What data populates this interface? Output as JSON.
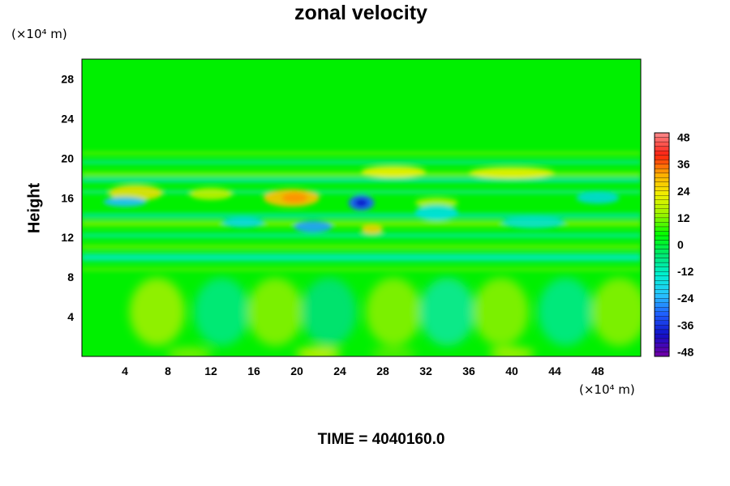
{
  "chart_data": {
    "type": "heatmap",
    "title": "zonal velocity",
    "ylabel": "Height",
    "xlabel": "",
    "x_unit": "(×10⁴ m)",
    "y_unit": "(×10⁴ m)",
    "x_ticks": [
      4,
      8,
      12,
      16,
      20,
      24,
      28,
      32,
      36,
      40,
      44,
      48
    ],
    "y_ticks": [
      4,
      8,
      12,
      16,
      20,
      24,
      28
    ],
    "xlim": [
      0,
      52
    ],
    "ylim": [
      0,
      30
    ],
    "colorbar": {
      "ticks": [
        48,
        36,
        24,
        12,
        0,
        -12,
        -24,
        -36,
        -48
      ],
      "range": [
        -50,
        50
      ],
      "colors": [
        "#6a00a8",
        "#1010c8",
        "#1f5fff",
        "#29c6ff",
        "#00f0d0",
        "#00e870",
        "#00ff00",
        "#9af500",
        "#f0f000",
        "#ffb000",
        "#ff2010",
        "#ff8080"
      ]
    },
    "annotation": "TIME = 4040160.0"
  }
}
